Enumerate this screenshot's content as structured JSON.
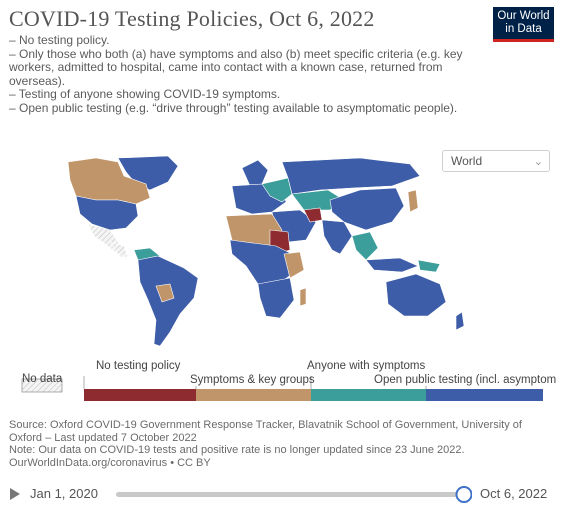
{
  "title": "COVID-19 Testing Policies, Oct 6, 2022",
  "logo": {
    "line1": "Our World",
    "line2": "in Data"
  },
  "subtitle": [
    "– No testing policy.",
    "– Only those who both (a) have symptoms and also (b) meet specific criteria (e.g. key workers, admitted to hospital, came into contact with a known case, returned from overseas).",
    "– Testing of anyone showing COVID-19 symptoms.",
    "– Open public testing (e.g. “drive through” testing available to asymptomatic people)."
  ],
  "region_selector": {
    "value": "World"
  },
  "colors": {
    "no_data": "#e2e2e2",
    "no_testing_policy": "#8e2b31",
    "symptoms_key_groups": "#c1956a",
    "anyone_with_symptoms": "#3b9e9a",
    "open_public_testing": "#3d5da8",
    "background": "#ffffff"
  },
  "legend": {
    "no_data": "No data",
    "no_testing_policy": "No testing policy",
    "symptoms_key_groups": "Symptoms & key groups",
    "anyone_with_symptoms": "Anyone with symptoms",
    "open_public_testing": "Open public testing (incl. asymptom"
  },
  "source": {
    "line1": "Source: Oxford COVID-19 Government Response Tracker, Blavatnik School of Government, University of Oxford – Last updated 7 October 2022",
    "line2": "Note: Our data on COVID-19 tests and positive rate is no longer updated since 23 June 2022.",
    "line3": "OurWorldInData.org/coronavirus • CC BY"
  },
  "timeline": {
    "start": "Jan 1, 2020",
    "end": "Oct 6, 2022",
    "progress": 1.0,
    "play_icon": "play-icon"
  }
}
